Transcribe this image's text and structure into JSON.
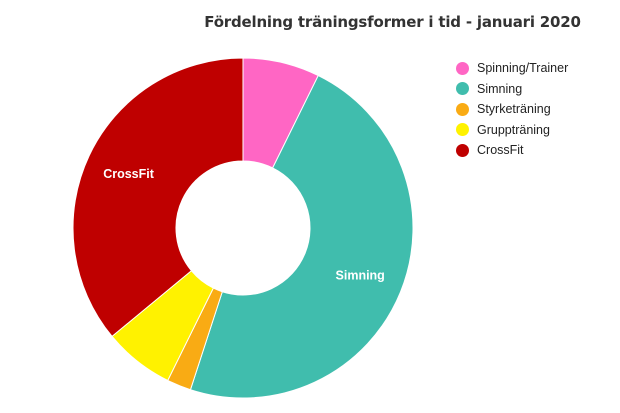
{
  "chart_data": {
    "type": "pie",
    "donut": true,
    "title": "Fördelning träningsformer i tid - januari 2020",
    "legend_position": "right",
    "slices": [
      {
        "label": "Spinning/Trainer",
        "value": 7.3,
        "color": "#ff66c4",
        "show_label": false
      },
      {
        "label": "Simning",
        "value": 47.7,
        "color": "#40bdad",
        "show_label": true
      },
      {
        "label": "Styrketräning",
        "value": 2.3,
        "color": "#f9ab14",
        "show_label": false
      },
      {
        "label": "Gruppträning",
        "value": 6.7,
        "color": "#fff200",
        "show_label": false
      },
      {
        "label": "CrossFit",
        "value": 36.0,
        "color": "#bf0000",
        "show_label": true
      }
    ]
  }
}
